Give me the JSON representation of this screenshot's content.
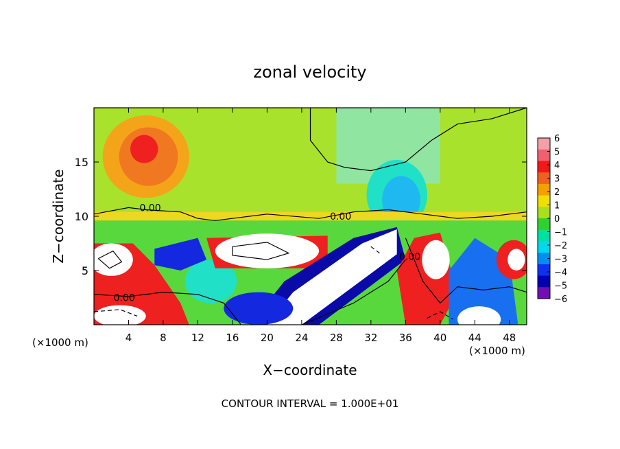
{
  "chart_data": {
    "type": "heatmap",
    "title": "zonal velocity",
    "xlabel": "X−coordinate",
    "ylabel": "Z−coordinate",
    "x_unit_label_left": "(×1000 m)",
    "x_unit_label_right": "(×1000 m)",
    "footer": "CONTOUR INTERVAL = 1.000E+01",
    "xlim": [
      0,
      50
    ],
    "ylim": [
      0,
      20
    ],
    "x_ticks": [
      4,
      8,
      12,
      16,
      20,
      24,
      28,
      32,
      36,
      40,
      44,
      48
    ],
    "x_tick_labels": [
      "4",
      "8",
      "12",
      "16",
      "20",
      "24",
      "28",
      "32",
      "36",
      "40",
      "44",
      "48"
    ],
    "y_ticks": [
      5,
      10,
      15
    ],
    "y_tick_labels": [
      "5",
      "10",
      "15"
    ],
    "colorbar_levels": [
      6,
      5,
      4,
      3,
      2,
      1,
      0,
      -1,
      -2,
      -3,
      -4,
      -5,
      -6
    ],
    "colorbar_labels": [
      "6",
      "5",
      "4",
      "3",
      "2",
      "1",
      "0",
      "−1",
      "−2",
      "−3",
      "−4",
      "−5",
      "−6"
    ],
    "colorbar_colors": [
      "#f4a0a8",
      "#f06070",
      "#f01818",
      "#f06020",
      "#f4a000",
      "#f0e000",
      "#a8e020",
      "#30d030",
      "#00e0a0",
      "#00d8f0",
      "#0090f0",
      "#1030f0",
      "#0000b0",
      "#7010b0"
    ],
    "contour_labels": [
      "0.00",
      "0.00",
      "0.00",
      "0.00"
    ],
    "grid": false,
    "legend": "colorbar-right"
  }
}
